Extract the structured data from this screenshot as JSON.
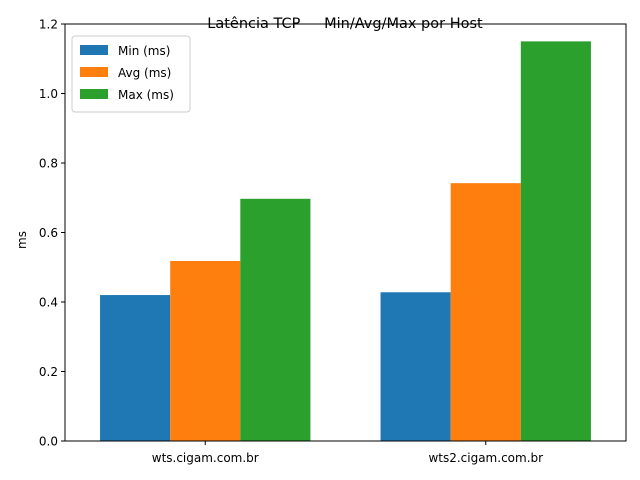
{
  "chart_data": {
    "type": "bar",
    "title": "Latência TCP — Min/Avg/Max por Host",
    "xlabel": "",
    "ylabel": "ms",
    "categories": [
      "wts.cigam.com.br",
      "wts2.cigam.com.br"
    ],
    "series": [
      {
        "name": "Min (ms)",
        "values": [
          0.42,
          0.428
        ],
        "color": "#1f77b4"
      },
      {
        "name": "Avg (ms)",
        "values": [
          0.518,
          0.742
        ],
        "color": "#ff7f0e"
      },
      {
        "name": "Max (ms)",
        "values": [
          0.697,
          1.15
        ],
        "color": "#2ca02c"
      }
    ],
    "ylim": [
      0,
      1.2
    ],
    "yticks": [
      "0.0",
      "0.2",
      "0.4",
      "0.6",
      "0.8",
      "1.0",
      "1.2"
    ],
    "grid": false,
    "legend_position": "top-left"
  }
}
